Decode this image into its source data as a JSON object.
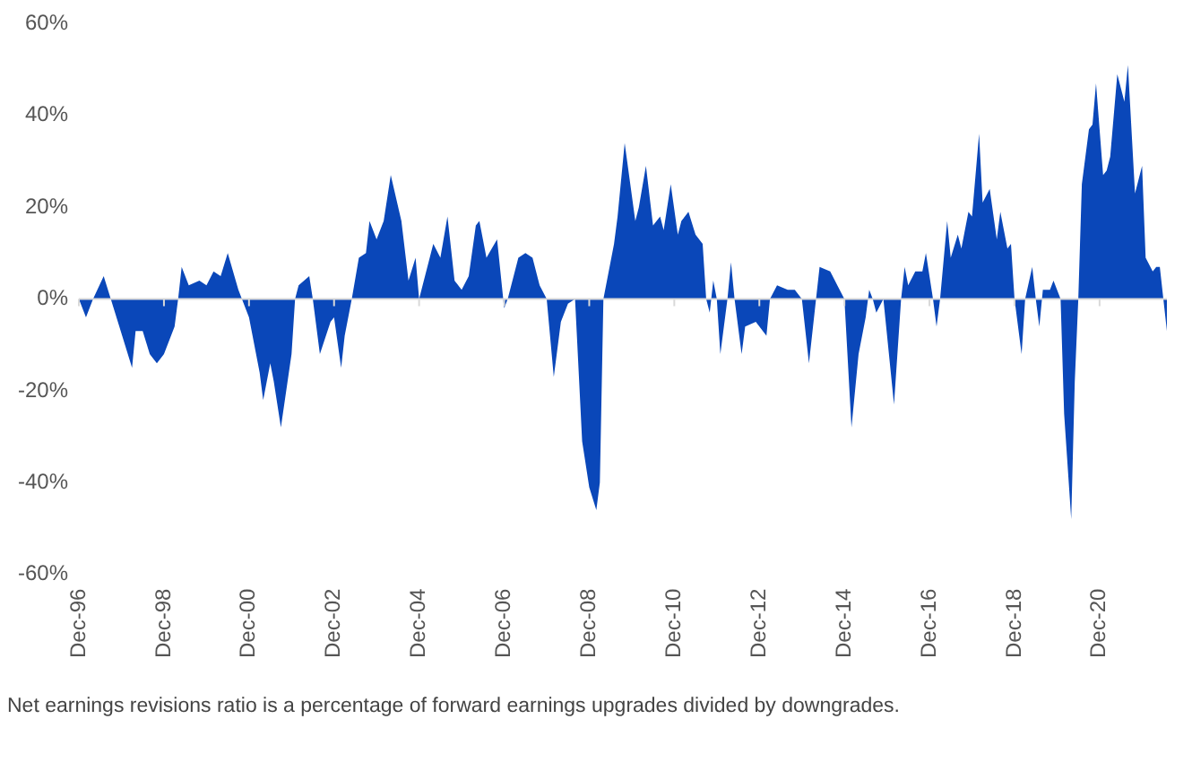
{
  "chart_data": {
    "type": "area",
    "color": "#0a47b9",
    "marker": "none",
    "grid": false,
    "legend": false,
    "annotations": [
      "Net earnings revisions ratio is a percentage of forward earnings upgrades divided by downgrades."
    ],
    "xticks": [
      {
        "value": "1996-12",
        "label": "Dec-96"
      },
      {
        "value": "1998-12",
        "label": "Dec-98"
      },
      {
        "value": "2000-12",
        "label": "Dec-00"
      },
      {
        "value": "2002-12",
        "label": "Dec-02"
      },
      {
        "value": "2004-12",
        "label": "Dec-04"
      },
      {
        "value": "2006-12",
        "label": "Dec-06"
      },
      {
        "value": "2008-12",
        "label": "Dec-08"
      },
      {
        "value": "2010-12",
        "label": "Dec-10"
      },
      {
        "value": "2012-12",
        "label": "Dec-12"
      },
      {
        "value": "2014-12",
        "label": "Dec-14"
      },
      {
        "value": "2016-12",
        "label": "Dec-16"
      },
      {
        "value": "2018-12",
        "label": "Dec-18"
      },
      {
        "value": "2020-12",
        "label": "Dec-20"
      }
    ],
    "xlim": [
      "1996-12",
      "2022-07"
    ],
    "ref_lines": [
      {
        "axis": "y",
        "value": 0,
        "color": "#d9d9d9"
      }
    ],
    "ylim": [
      -60,
      60
    ],
    "yticks": [
      {
        "value": -60,
        "label": "-60%"
      },
      {
        "value": -40,
        "label": "-40%"
      },
      {
        "value": -20,
        "label": "-20%"
      },
      {
        "value": 0,
        "label": "0%"
      },
      {
        "value": 20,
        "label": "20%"
      },
      {
        "value": 40,
        "label": "40%"
      },
      {
        "value": 60,
        "label": "60%"
      }
    ],
    "x": [
      "1996-12",
      "1997-02",
      "1997-04",
      "1997-07",
      "1997-09",
      "1997-11",
      "1998-03",
      "1998-04",
      "1998-06",
      "1998-08",
      "1998-10",
      "1998-12",
      "1999-03",
      "1999-04",
      "1999-05",
      "1999-07",
      "1999-10",
      "1999-12",
      "2000-02",
      "2000-04",
      "2000-06",
      "2000-09",
      "2000-10",
      "2000-12",
      "2001-03",
      "2001-04",
      "2001-06",
      "2001-07",
      "2001-09",
      "2001-12",
      "2002-01",
      "2002-02",
      "2002-05",
      "2002-06",
      "2002-08",
      "2002-11",
      "2002-12",
      "2003-02",
      "2003-03",
      "2003-05",
      "2003-07",
      "2003-09",
      "2003-10",
      "2003-12",
      "2004-02",
      "2004-04",
      "2004-07",
      "2004-09",
      "2004-11",
      "2004-12",
      "2005-04",
      "2005-06",
      "2005-08",
      "2005-10",
      "2005-12",
      "2006-02",
      "2006-04",
      "2006-05",
      "2006-07",
      "2006-10",
      "2006-12",
      "2007-01",
      "2007-04",
      "2007-06",
      "2007-08",
      "2007-10",
      "2007-12",
      "2008-02",
      "2008-04",
      "2008-06",
      "2008-08",
      "2008-10",
      "2008-12",
      "2009-02",
      "2009-03",
      "2009-04",
      "2009-07",
      "2009-08",
      "2009-10",
      "2010-01",
      "2010-02",
      "2010-04",
      "2010-06",
      "2010-08",
      "2010-09",
      "2010-11",
      "2011-01",
      "2011-02",
      "2011-04",
      "2011-06",
      "2011-08",
      "2011-09",
      "2011-10",
      "2011-11",
      "2011-12",
      "2012-01",
      "2012-03",
      "2012-04",
      "2012-05",
      "2012-07",
      "2012-08",
      "2012-11",
      "2013-02",
      "2013-03",
      "2013-05",
      "2013-08",
      "2013-10",
      "2013-12",
      "2014-02",
      "2014-04",
      "2014-05",
      "2014-08",
      "2014-10",
      "2014-12",
      "2015-02",
      "2015-04",
      "2015-06",
      "2015-07",
      "2015-08",
      "2015-09",
      "2015-11",
      "2016-02",
      "2016-04",
      "2016-05",
      "2016-06",
      "2016-08",
      "2016-10",
      "2016-11",
      "2017-01",
      "2017-02",
      "2017-03",
      "2017-05",
      "2017-06",
      "2017-08",
      "2017-09",
      "2017-11",
      "2017-12",
      "2018-02",
      "2018-03",
      "2018-05",
      "2018-07",
      "2018-08",
      "2018-10",
      "2018-11",
      "2018-12",
      "2019-02",
      "2019-03",
      "2019-05",
      "2019-06",
      "2019-07",
      "2019-08",
      "2019-10",
      "2019-11",
      "2020-01",
      "2020-02",
      "2020-04",
      "2020-05",
      "2020-06",
      "2020-07",
      "2020-09",
      "2020-10",
      "2020-11",
      "2021-01",
      "2021-02",
      "2021-03",
      "2021-05",
      "2021-07",
      "2021-08",
      "2021-10",
      "2021-12",
      "2022-01",
      "2022-03",
      "2022-04",
      "2022-05",
      "2022-06",
      "2022-07"
    ],
    "values": [
      0,
      -4,
      0,
      5,
      0,
      -5,
      -15,
      -7,
      -7,
      -12,
      -14,
      -12,
      -6,
      0,
      7,
      3,
      4,
      3,
      6,
      5,
      10,
      2,
      0,
      -4,
      -16,
      -22,
      -14,
      -18,
      -28,
      -12,
      0,
      3,
      5,
      0,
      -12,
      -5,
      -4,
      -15,
      -8,
      0,
      9,
      10,
      17,
      13,
      17,
      27,
      17,
      4,
      9,
      0,
      12,
      9,
      18,
      4,
      2,
      5,
      16,
      17,
      9,
      13,
      -2,
      0,
      9,
      10,
      9,
      3,
      0,
      -17,
      -5,
      -1,
      0,
      -31,
      -41,
      -46,
      -40,
      0,
      12,
      18,
      34,
      17,
      20,
      29,
      16,
      18,
      15,
      25,
      14,
      17,
      19,
      14,
      12,
      0,
      -3,
      4,
      0,
      -12,
      0,
      8,
      0,
      -12,
      -6,
      -5,
      -8,
      0,
      3,
      2,
      2,
      0,
      -14,
      0,
      7,
      6,
      3,
      0,
      -28,
      -12,
      -4,
      2,
      0,
      -3,
      0,
      -23,
      0,
      7,
      3,
      6,
      6,
      10,
      0,
      -6,
      0,
      17,
      9,
      14,
      11,
      19,
      18,
      36,
      21,
      24,
      13,
      19,
      11,
      12,
      0,
      -12,
      0,
      7,
      0,
      -6,
      2,
      2,
      4,
      0,
      -25,
      -48,
      -18,
      0,
      25,
      37,
      38,
      47,
      27,
      28,
      31,
      49,
      43,
      51,
      23,
      29,
      9,
      6,
      7,
      7,
      0,
      -7
    ]
  }
}
